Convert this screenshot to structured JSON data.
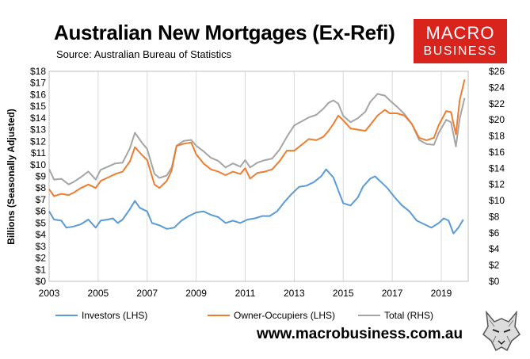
{
  "header": {
    "title": "Australian New Mortgages (Ex-Refi)",
    "subtitle": "Source: Australian Bureau of Statistics"
  },
  "logo": {
    "line1": "MACRO",
    "line2": "BUSINESS",
    "color": "#d9231d"
  },
  "footer": {
    "website": "www.macrobusiness.com.au"
  },
  "icons": {
    "mascot": "wolf-icon"
  },
  "chart_data": {
    "type": "line",
    "ylabel": "Billions (Seasonally Adjusted)",
    "xlim": [
      2003,
      2020.1
    ],
    "ylim": [
      0,
      18
    ],
    "y2lim": [
      0,
      26
    ],
    "x_ticks": [
      "2003",
      "2005",
      "2007",
      "2009",
      "2011",
      "2013",
      "2015",
      "2017",
      "2019"
    ],
    "y_ticks": [
      "$0",
      "$1",
      "$2",
      "$3",
      "$4",
      "$5",
      "$6",
      "$7",
      "$8",
      "$9",
      "$10",
      "$11",
      "$12",
      "$13",
      "$14",
      "$15",
      "$16",
      "$17",
      "$18"
    ],
    "y2_ticks": [
      "$0",
      "$2",
      "$4",
      "$6",
      "$8",
      "$10",
      "$12",
      "$14",
      "$16",
      "$18",
      "$20",
      "$22",
      "$24",
      "$26"
    ],
    "grid": "vertical",
    "legend_position": "bottom",
    "series": [
      {
        "name": "Investors (LHS)",
        "axis": "left",
        "color": "#5b9bd5",
        "points": [
          [
            2003.0,
            6.0
          ],
          [
            2003.2,
            5.3
          ],
          [
            2003.5,
            5.2
          ],
          [
            2003.7,
            4.6
          ],
          [
            2004.0,
            4.7
          ],
          [
            2004.3,
            4.9
          ],
          [
            2004.6,
            5.3
          ],
          [
            2004.9,
            4.6
          ],
          [
            2005.1,
            5.2
          ],
          [
            2005.4,
            5.3
          ],
          [
            2005.6,
            5.4
          ],
          [
            2005.8,
            5.0
          ],
          [
            2006.0,
            5.3
          ],
          [
            2006.3,
            6.2
          ],
          [
            2006.5,
            6.9
          ],
          [
            2006.7,
            6.3
          ],
          [
            2007.0,
            6.0
          ],
          [
            2007.2,
            5.0
          ],
          [
            2007.5,
            4.8
          ],
          [
            2007.8,
            4.5
          ],
          [
            2008.1,
            4.6
          ],
          [
            2008.4,
            5.2
          ],
          [
            2008.7,
            5.6
          ],
          [
            2009.0,
            5.9
          ],
          [
            2009.3,
            6.0
          ],
          [
            2009.6,
            5.7
          ],
          [
            2009.9,
            5.5
          ],
          [
            2010.2,
            5.0
          ],
          [
            2010.5,
            5.2
          ],
          [
            2010.8,
            5.0
          ],
          [
            2011.1,
            5.3
          ],
          [
            2011.4,
            5.4
          ],
          [
            2011.7,
            5.6
          ],
          [
            2012.0,
            5.6
          ],
          [
            2012.3,
            6.0
          ],
          [
            2012.6,
            6.8
          ],
          [
            2012.9,
            7.5
          ],
          [
            2013.2,
            8.1
          ],
          [
            2013.5,
            8.2
          ],
          [
            2013.8,
            8.5
          ],
          [
            2014.1,
            9.0
          ],
          [
            2014.3,
            9.6
          ],
          [
            2014.6,
            8.9
          ],
          [
            2014.8,
            7.8
          ],
          [
            2015.0,
            6.7
          ],
          [
            2015.3,
            6.5
          ],
          [
            2015.6,
            7.2
          ],
          [
            2015.8,
            8.1
          ],
          [
            2016.1,
            8.8
          ],
          [
            2016.3,
            9.0
          ],
          [
            2016.6,
            8.4
          ],
          [
            2016.8,
            8.0
          ],
          [
            2017.1,
            7.2
          ],
          [
            2017.4,
            6.5
          ],
          [
            2017.7,
            6.0
          ],
          [
            2018.0,
            5.2
          ],
          [
            2018.3,
            4.9
          ],
          [
            2018.6,
            4.6
          ],
          [
            2018.9,
            5.0
          ],
          [
            2019.1,
            5.4
          ],
          [
            2019.3,
            5.2
          ],
          [
            2019.5,
            4.1
          ],
          [
            2019.7,
            4.6
          ],
          [
            2019.9,
            5.3
          ]
        ]
      },
      {
        "name": "Owner-Occupiers (LHS)",
        "axis": "left",
        "color": "#ed7d31",
        "points": [
          [
            2003.0,
            7.9
          ],
          [
            2003.2,
            7.3
          ],
          [
            2003.5,
            7.5
          ],
          [
            2003.8,
            7.4
          ],
          [
            2004.0,
            7.6
          ],
          [
            2004.3,
            8.0
          ],
          [
            2004.6,
            8.3
          ],
          [
            2004.9,
            8.0
          ],
          [
            2005.1,
            8.6
          ],
          [
            2005.4,
            8.9
          ],
          [
            2005.7,
            9.2
          ],
          [
            2006.0,
            9.4
          ],
          [
            2006.3,
            10.3
          ],
          [
            2006.5,
            11.5
          ],
          [
            2006.8,
            10.8
          ],
          [
            2007.0,
            10.4
          ],
          [
            2007.3,
            8.3
          ],
          [
            2007.5,
            8.0
          ],
          [
            2007.8,
            8.6
          ],
          [
            2008.0,
            9.5
          ],
          [
            2008.2,
            11.6
          ],
          [
            2008.5,
            11.8
          ],
          [
            2008.8,
            11.9
          ],
          [
            2009.0,
            10.9
          ],
          [
            2009.3,
            10.1
          ],
          [
            2009.6,
            9.6
          ],
          [
            2009.9,
            9.4
          ],
          [
            2010.2,
            9.1
          ],
          [
            2010.5,
            9.4
          ],
          [
            2010.8,
            9.2
          ],
          [
            2011.0,
            9.7
          ],
          [
            2011.2,
            8.8
          ],
          [
            2011.5,
            9.3
          ],
          [
            2011.8,
            9.4
          ],
          [
            2012.1,
            9.6
          ],
          [
            2012.4,
            10.3
          ],
          [
            2012.7,
            11.2
          ],
          [
            2013.0,
            11.2
          ],
          [
            2013.3,
            11.7
          ],
          [
            2013.6,
            12.2
          ],
          [
            2013.9,
            12.1
          ],
          [
            2014.2,
            12.4
          ],
          [
            2014.4,
            12.9
          ],
          [
            2014.6,
            13.5
          ],
          [
            2014.8,
            14.2
          ],
          [
            2015.0,
            13.8
          ],
          [
            2015.3,
            13.1
          ],
          [
            2015.6,
            13.0
          ],
          [
            2015.9,
            12.9
          ],
          [
            2016.1,
            13.4
          ],
          [
            2016.4,
            14.2
          ],
          [
            2016.7,
            14.7
          ],
          [
            2016.9,
            14.4
          ],
          [
            2017.2,
            14.4
          ],
          [
            2017.5,
            14.2
          ],
          [
            2017.8,
            13.5
          ],
          [
            2018.1,
            12.3
          ],
          [
            2018.4,
            12.1
          ],
          [
            2018.7,
            12.3
          ],
          [
            2018.9,
            13.4
          ],
          [
            2019.2,
            14.6
          ],
          [
            2019.4,
            14.5
          ],
          [
            2019.6,
            12.6
          ],
          [
            2019.75,
            15.5
          ],
          [
            2019.95,
            17.3
          ]
        ]
      },
      {
        "name": "Total (RHS)",
        "axis": "right",
        "color": "#a5a5a5",
        "points": [
          [
            2003.0,
            13.9
          ],
          [
            2003.2,
            12.6
          ],
          [
            2003.5,
            12.7
          ],
          [
            2003.8,
            12.0
          ],
          [
            2004.0,
            12.3
          ],
          [
            2004.3,
            12.9
          ],
          [
            2004.6,
            13.6
          ],
          [
            2004.9,
            12.6
          ],
          [
            2005.1,
            13.8
          ],
          [
            2005.4,
            14.2
          ],
          [
            2005.7,
            14.6
          ],
          [
            2006.0,
            14.7
          ],
          [
            2006.3,
            16.5
          ],
          [
            2006.5,
            18.4
          ],
          [
            2006.8,
            17.1
          ],
          [
            2007.0,
            16.4
          ],
          [
            2007.3,
            13.3
          ],
          [
            2007.5,
            12.8
          ],
          [
            2007.8,
            13.1
          ],
          [
            2008.0,
            14.1
          ],
          [
            2008.2,
            16.8
          ],
          [
            2008.5,
            17.4
          ],
          [
            2008.8,
            17.5
          ],
          [
            2009.0,
            16.8
          ],
          [
            2009.3,
            16.1
          ],
          [
            2009.6,
            15.3
          ],
          [
            2009.9,
            14.9
          ],
          [
            2010.2,
            14.1
          ],
          [
            2010.5,
            14.6
          ],
          [
            2010.8,
            14.2
          ],
          [
            2011.0,
            15.0
          ],
          [
            2011.2,
            14.1
          ],
          [
            2011.5,
            14.7
          ],
          [
            2011.8,
            15.0
          ],
          [
            2012.1,
            15.2
          ],
          [
            2012.4,
            16.3
          ],
          [
            2012.7,
            17.9
          ],
          [
            2013.0,
            19.3
          ],
          [
            2013.3,
            19.8
          ],
          [
            2013.6,
            20.3
          ],
          [
            2013.9,
            20.6
          ],
          [
            2014.2,
            21.4
          ],
          [
            2014.4,
            22.1
          ],
          [
            2014.6,
            22.4
          ],
          [
            2014.8,
            22.0
          ],
          [
            2015.0,
            20.5
          ],
          [
            2015.3,
            19.7
          ],
          [
            2015.6,
            20.2
          ],
          [
            2015.9,
            21.0
          ],
          [
            2016.1,
            22.2
          ],
          [
            2016.4,
            23.2
          ],
          [
            2016.7,
            23.0
          ],
          [
            2016.9,
            22.4
          ],
          [
            2017.2,
            21.6
          ],
          [
            2017.5,
            20.7
          ],
          [
            2017.8,
            19.5
          ],
          [
            2018.1,
            17.5
          ],
          [
            2018.4,
            17.0
          ],
          [
            2018.7,
            16.9
          ],
          [
            2018.9,
            18.4
          ],
          [
            2019.2,
            20.0
          ],
          [
            2019.4,
            19.7
          ],
          [
            2019.6,
            16.7
          ],
          [
            2019.75,
            20.1
          ],
          [
            2019.95,
            22.7
          ]
        ]
      }
    ]
  }
}
